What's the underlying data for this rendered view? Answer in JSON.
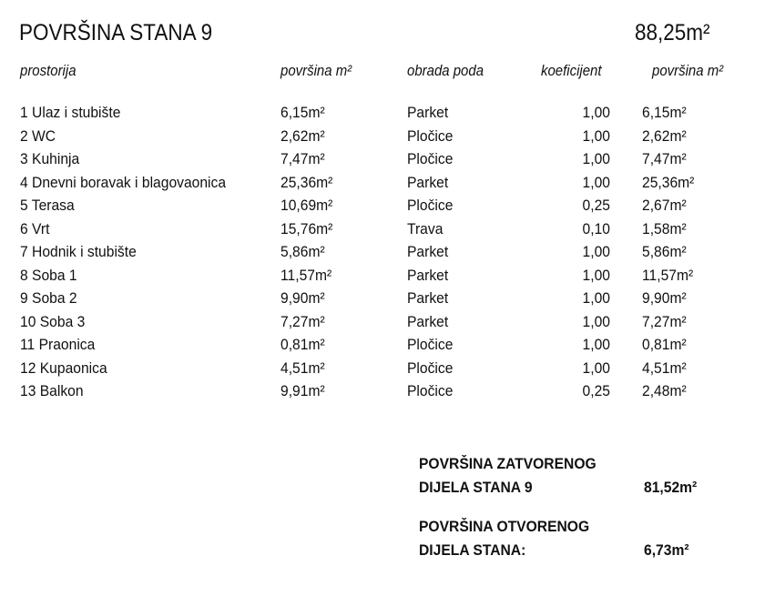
{
  "title": "POVRŠINA STANA 9",
  "total": "88,25m²",
  "headers": [
    "prostorija",
    "površina m²",
    "obrada poda",
    "koeficijent",
    "površina m²"
  ],
  "rows": [
    [
      "1 Ulaz i stubište",
      "6,15m²",
      "Parket",
      "1,00",
      "6,15m²"
    ],
    [
      "2 WC",
      "2,62m²",
      "Pločice",
      "1,00",
      "2,62m²"
    ],
    [
      "3 Kuhinja",
      "7,47m²",
      "Pločice",
      "1,00",
      "7,47m²"
    ],
    [
      "4 Dnevni boravak i blagovaonica",
      "25,36m²",
      "Parket",
      "1,00",
      "25,36m²"
    ],
    [
      "5 Terasa",
      "10,69m²",
      "Pločice",
      "0,25",
      "2,67m²"
    ],
    [
      "6 Vrt",
      "15,76m²",
      "Trava",
      "0,10",
      "1,58m²"
    ],
    [
      "7 Hodnik i stubište",
      "5,86m²",
      "Parket",
      "1,00",
      "5,86m²"
    ],
    [
      "8 Soba 1",
      "11,57m²",
      "Parket",
      "1,00",
      "11,57m²"
    ],
    [
      "9 Soba 2",
      "9,90m²",
      "Parket",
      "1,00",
      "9,90m²"
    ],
    [
      "10 Soba 3",
      "7,27m²",
      "Parket",
      "1,00",
      "7,27m²"
    ],
    [
      "11 Praonica",
      "0,81m²",
      "Pločice",
      "1,00",
      "0,81m²"
    ],
    [
      "12 Kupaonica",
      "4,51m²",
      "Pločice",
      "1,00",
      "4,51m²"
    ],
    [
      "13 Balkon",
      "9,91m²",
      "Pločice",
      "0,25",
      "2,48m²"
    ]
  ],
  "summary": {
    "closed_line1": "POVRŠINA ZATVORENOG",
    "closed_line2": "DIJELA STANA 9",
    "closed_value": "81,52m²",
    "open_line1": "POVRŠINA OTVORENOG",
    "open_line2": "DIJELA STANA:",
    "open_value": "6,73m²"
  }
}
